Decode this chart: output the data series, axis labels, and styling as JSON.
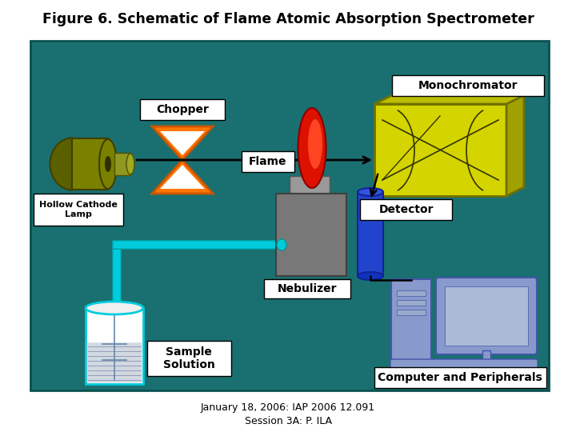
{
  "title": "Figure 6. Schematic of Flame Atomic Absorption Spectrometer",
  "subtitle1": "January 18, 2006: IAP 2006 12.091",
  "subtitle2": "Session 3A: P. ILA",
  "bg_color": "#1A7070",
  "white": "#ffffff",
  "black": "#000000",
  "colors": {
    "lamp_body_front": "#7A8000",
    "lamp_body_side": "#5A6000",
    "lamp_cap": "#909820",
    "chopper_orange": "#FF7700",
    "chopper_white": "#ffffff",
    "flame_red": "#DD1100",
    "flame_bright": "#FF4422",
    "burner_gray": "#888888",
    "nebulizer_gray": "#787878",
    "mono_yellow": "#D4D400",
    "mono_side": "#A0A000",
    "mono_top": "#BCBC00",
    "detector_blue": "#2244CC",
    "tube_cyan": "#00CCDD",
    "sample_body": "#e8e8e8",
    "sample_liquid": "#c0c8d4",
    "sample_outline": "#00CCDD",
    "computer_blue": "#8899CC",
    "computer_screen": "#AABBD8"
  }
}
